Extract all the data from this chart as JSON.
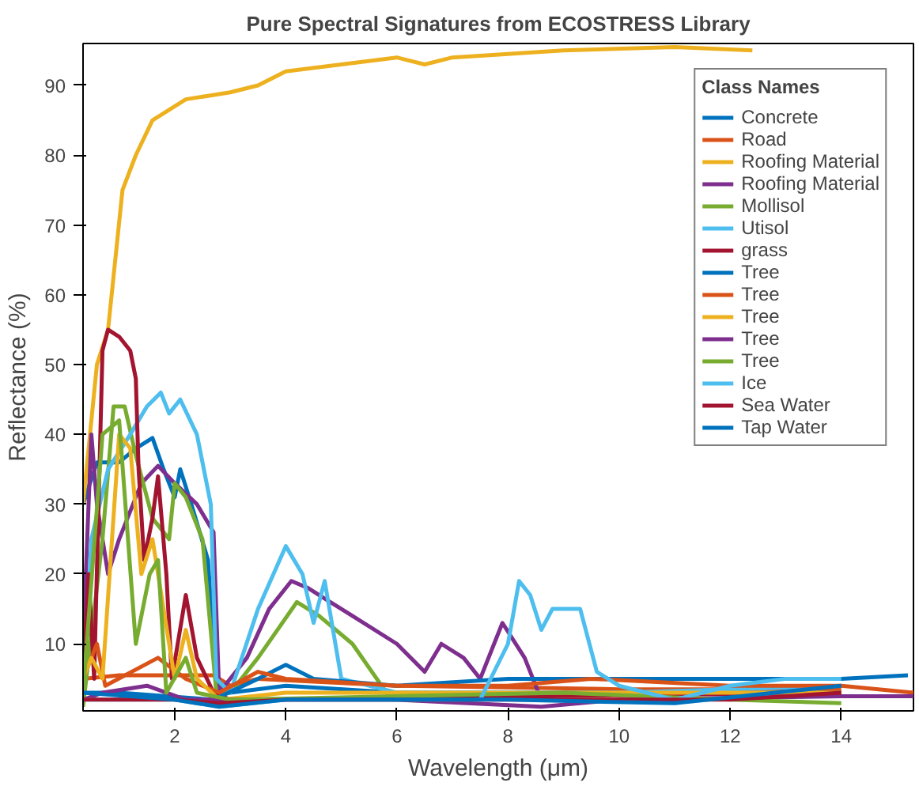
{
  "chart_data": {
    "type": "line",
    "title": "Pure Spectral Signatures from ECOSTRESS Library",
    "xlabel": "Wavelength (μm)",
    "ylabel": "Reflectance (%)",
    "legend_title": "Class Names",
    "legend": "top right",
    "grid": false,
    "xlim": [
      0.35,
      15.3
    ],
    "ylim": [
      0.4,
      96
    ],
    "xticks": [
      2,
      4,
      6,
      8,
      10,
      12,
      14
    ],
    "yticks": [
      10,
      20,
      30,
      40,
      50,
      60,
      70,
      80,
      90
    ],
    "series": [
      {
        "name": "Concrete",
        "color": "#0072bd",
        "x": [
          0.35,
          0.6,
          1.0,
          1.3,
          1.6,
          1.8,
          2.0,
          2.1,
          2.3,
          2.6,
          2.75,
          3,
          4,
          6,
          8,
          10,
          12,
          14
        ],
        "values": [
          30,
          36,
          36,
          38,
          39.5,
          35,
          31,
          35,
          30,
          22,
          4,
          3,
          4,
          3,
          3,
          3,
          3,
          3
        ]
      },
      {
        "name": "Road",
        "color": "#d95319",
        "x": [
          0.35,
          1,
          2,
          2.7,
          3.0,
          3.5,
          6,
          10,
          14
        ],
        "values": [
          5,
          5.5,
          5.5,
          5.5,
          4,
          5,
          4,
          3.5,
          3.5
        ]
      },
      {
        "name": "Roofing Material",
        "color": "#edb120",
        "x": [
          0.35,
          0.6,
          0.8,
          1.06,
          1.3,
          1.6,
          2.2,
          2.6,
          3.0,
          3.5,
          4,
          5,
          6,
          6.5,
          7,
          9,
          11,
          12.4
        ],
        "values": [
          30,
          50,
          55,
          75,
          80,
          85,
          88,
          88.5,
          89,
          90,
          92,
          93,
          94,
          93,
          94,
          95,
          95.5,
          95
        ]
      },
      {
        "name": "Roofing Material",
        "color": "#7e2f8e",
        "x": [
          0.35,
          0.5,
          0.6,
          0.8,
          1.0,
          1.4,
          1.7,
          2.0,
          2.4,
          2.7,
          2.8,
          3.3,
          3.7,
          4.1,
          4.4,
          4.8,
          5.2,
          6.0,
          6.5,
          6.8,
          7.2,
          7.5,
          7.9,
          8.3,
          8.6,
          9,
          12,
          14
        ],
        "values": [
          10,
          40,
          30,
          20,
          25,
          33,
          35.5,
          33,
          30,
          26,
          3,
          8,
          15,
          19,
          18,
          16,
          14,
          10,
          6,
          10,
          8,
          5,
          13,
          8,
          2,
          3,
          3,
          3
        ]
      },
      {
        "name": "Mollisol",
        "color": "#77ac30",
        "x": [
          0.35,
          0.7,
          0.9,
          1.1,
          1.3,
          1.6,
          1.9,
          2.0,
          2.2,
          2.5,
          2.75,
          3,
          3.5,
          4.2,
          4.6,
          5.2,
          5.9,
          10,
          14
        ],
        "values": [
          1,
          25,
          44,
          44,
          37,
          28,
          25,
          33,
          31,
          25,
          3,
          3,
          8,
          16,
          14,
          10,
          2,
          3,
          3
        ]
      },
      {
        "name": "Utisol",
        "color": "#4dbeee",
        "x": [
          0.35,
          0.5,
          0.8,
          1.2,
          1.5,
          1.75,
          1.9,
          2.1,
          2.4,
          2.65,
          2.75,
          3,
          3.5,
          4,
          4.3,
          4.5,
          4.7,
          5,
          6,
          8,
          10,
          14
        ],
        "values": [
          3,
          25,
          35,
          40,
          44,
          46,
          43,
          45,
          40,
          30,
          5,
          3,
          15,
          24,
          20,
          13,
          19,
          5,
          3,
          3,
          3,
          4
        ]
      },
      {
        "name": "grass",
        "color": "#a2142f",
        "x": [
          0.35,
          0.45,
          0.55,
          0.7,
          0.8,
          1.0,
          1.2,
          1.3,
          1.35,
          1.45,
          1.6,
          1.7,
          1.85,
          1.95,
          2.2,
          2.4,
          2.7,
          3,
          14
        ],
        "values": [
          5,
          20,
          5,
          52,
          55,
          54,
          52,
          48,
          35,
          22,
          28,
          34,
          20,
          5,
          17,
          8,
          3,
          2,
          3
        ]
      },
      {
        "name": "Tree",
        "color": "#0072bd",
        "x": [
          0.35,
          1,
          2.7,
          3.5,
          4,
          4.5,
          6,
          8,
          10,
          12,
          14,
          15.2
        ],
        "values": [
          3,
          3,
          2,
          5,
          7,
          5,
          4,
          5,
          5,
          5,
          5,
          5.5
        ]
      },
      {
        "name": "Tree",
        "color": "#d95319",
        "x": [
          0.35,
          0.6,
          0.75,
          1.7,
          2.2,
          2.8,
          3.5,
          4,
          6,
          8,
          9.5,
          12,
          14,
          15.3
        ],
        "values": [
          5,
          10,
          4,
          8,
          5,
          3,
          6,
          5,
          4,
          4,
          5,
          4,
          4,
          3
        ]
      },
      {
        "name": "Tree",
        "color": "#edb120",
        "x": [
          0.35,
          0.5,
          0.7,
          1.0,
          1.2,
          1.4,
          1.6,
          1.8,
          2.0,
          2.2,
          2.4,
          2.8,
          4,
          8,
          14
        ],
        "values": [
          5,
          8,
          5,
          40,
          38,
          20,
          25,
          15,
          5,
          12,
          5,
          2,
          3,
          3,
          3
        ]
      },
      {
        "name": "Tree",
        "color": "#7e2f8e",
        "x": [
          0.35,
          0.7,
          1.5,
          2.2,
          2.8,
          6,
          8.6,
          10,
          14,
          15.3
        ],
        "values": [
          2,
          3,
          4,
          2,
          2,
          2,
          1,
          2,
          2.5,
          2.5
        ]
      },
      {
        "name": "Tree",
        "color": "#77ac30",
        "x": [
          0.35,
          0.7,
          1.0,
          1.3,
          1.55,
          1.7,
          1.85,
          2.2,
          2.4,
          3,
          9,
          12,
          14
        ],
        "values": [
          3,
          40,
          42,
          10,
          20,
          22,
          3,
          8,
          3,
          2,
          3,
          2,
          1.5
        ]
      },
      {
        "name": "Ice",
        "color": "#4dbeee",
        "x": [
          0.35,
          2,
          2.8,
          4,
          6,
          7.5,
          8,
          8.2,
          8.4,
          8.6,
          8.8,
          9.3,
          9.6,
          10,
          11,
          12,
          13,
          14
        ],
        "values": [
          2,
          2,
          1,
          2,
          2,
          2,
          10,
          19,
          17,
          12,
          15,
          15,
          6,
          4,
          2,
          4,
          5,
          5
        ]
      },
      {
        "name": "Sea Water",
        "color": "#a2142f",
        "x": [
          0.35,
          2,
          2.8,
          4,
          8,
          12,
          14
        ],
        "values": [
          2,
          2,
          1.5,
          2,
          2,
          2,
          3
        ]
      },
      {
        "name": "Tap Water",
        "color": "#0072bd",
        "x": [
          0.35,
          2,
          2.8,
          4,
          8,
          11,
          14
        ],
        "values": [
          3,
          2,
          1,
          2,
          2,
          1.5,
          4
        ]
      }
    ]
  }
}
